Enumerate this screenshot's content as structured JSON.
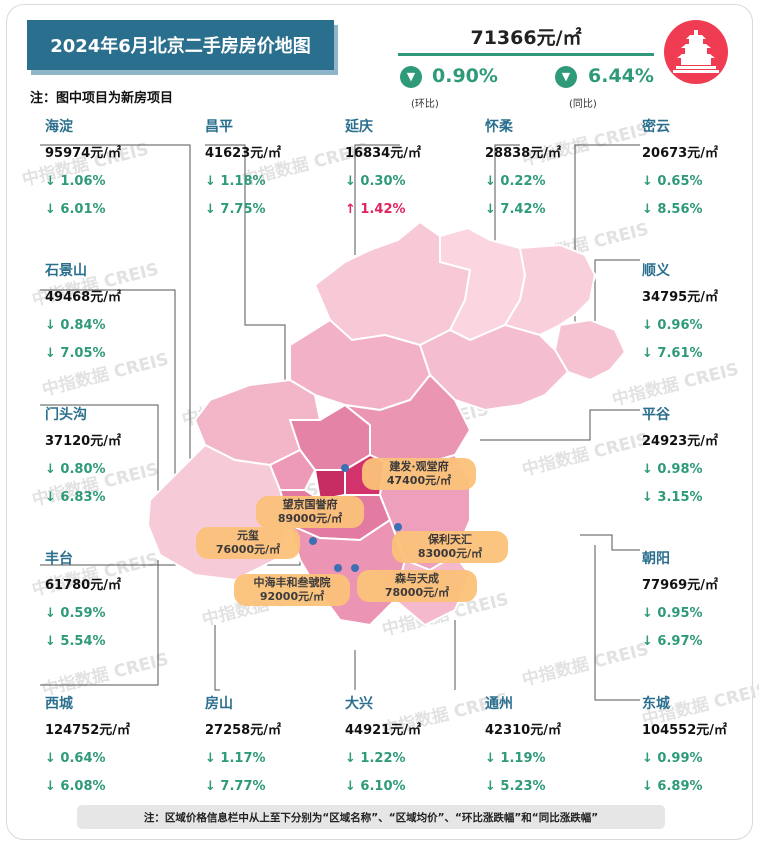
{
  "title": "2024年6月北京二手房房价地图",
  "note": "注：图中项目为新房项目",
  "average": {
    "price": "71366元/㎡",
    "mom_value": "0.90%",
    "mom_label": "(环比)",
    "yoy_value": "6.44%",
    "yoy_label": "(同比)"
  },
  "regions": {
    "haidian": {
      "name": "海淀",
      "price": "95974元/㎡",
      "mom": "↓ 1.06%",
      "yoy": "↓ 6.01%"
    },
    "changping": {
      "name": "昌平",
      "price": "41623元/㎡",
      "mom": "↓ 1.18%",
      "yoy": "↓ 7.75%"
    },
    "yanqing": {
      "name": "延庆",
      "price": "16834元/㎡",
      "mom": "↓ 0.30%",
      "yoy": "↑ 1.42%"
    },
    "huairou": {
      "name": "怀柔",
      "price": "28838元/㎡",
      "mom": "↓ 0.22%",
      "yoy": "↓ 7.42%"
    },
    "miyun": {
      "name": "密云",
      "price": "20673元/㎡",
      "mom": "↓ 0.65%",
      "yoy": "↓ 8.56%"
    },
    "shijingshan": {
      "name": "石景山",
      "price": "49468元/㎡",
      "mom": "↓ 0.84%",
      "yoy": "↓ 7.05%"
    },
    "shunyi": {
      "name": "顺义",
      "price": "34795元/㎡",
      "mom": "↓ 0.96%",
      "yoy": "↓ 7.61%"
    },
    "mentougou": {
      "name": "门头沟",
      "price": "37120元/㎡",
      "mom": "↓ 0.80%",
      "yoy": "↓ 6.83%"
    },
    "pinggu": {
      "name": "平谷",
      "price": "24923元/㎡",
      "mom": "↓ 0.98%",
      "yoy": "↓ 3.15%"
    },
    "fengtai": {
      "name": "丰台",
      "price": "61780元/㎡",
      "mom": "↓ 0.59%",
      "yoy": "↓ 5.54%"
    },
    "chaoyang": {
      "name": "朝阳",
      "price": "77969元/㎡",
      "mom": "↓ 0.95%",
      "yoy": "↓ 6.97%"
    },
    "xicheng": {
      "name": "西城",
      "price": "124752元/㎡",
      "mom": "↓ 0.64%",
      "yoy": "↓ 6.08%"
    },
    "fangshan": {
      "name": "房山",
      "price": "27258元/㎡",
      "mom": "↓ 1.17%",
      "yoy": "↓ 7.77%"
    },
    "daxing": {
      "name": "大兴",
      "price": "44921元/㎡",
      "mom": "↓ 1.22%",
      "yoy": "↓ 6.10%"
    },
    "tongzhou": {
      "name": "通州",
      "price": "42310元/㎡",
      "mom": "↓ 1.19%",
      "yoy": "↓ 5.23%"
    },
    "dongcheng": {
      "name": "东城",
      "price": "104552元/㎡",
      "mom": "↓ 0.99%",
      "yoy": "↓ 6.89%"
    }
  },
  "projects": {
    "jianfa": {
      "name": "建发·观堂府",
      "price": "47400元/㎡"
    },
    "wangjing": {
      "name": "望京国誉府",
      "price": "89000元/㎡"
    },
    "yuanxi": {
      "name": "元玺",
      "price": "76000元/㎡"
    },
    "baoli": {
      "name": "保利天汇",
      "price": "83000元/㎡"
    },
    "zhonghai": {
      "name": "中海丰和叁號院",
      "price": "92000元/㎡"
    },
    "senyu": {
      "name": "森与天成",
      "price": "78000元/㎡"
    }
  },
  "bottom_note": "注：区域价格信息栏中从上至下分别为“区域名称”、“区域均价”、“环比涨跌幅”和“同比涨跌幅”",
  "watermark": "中指数据 CREIS",
  "colors": {
    "accent": "#2b6f8e",
    "down": "#2e9a7a",
    "up": "#e0245e",
    "tag": "#fbc27a",
    "logo": "#f03c52"
  }
}
